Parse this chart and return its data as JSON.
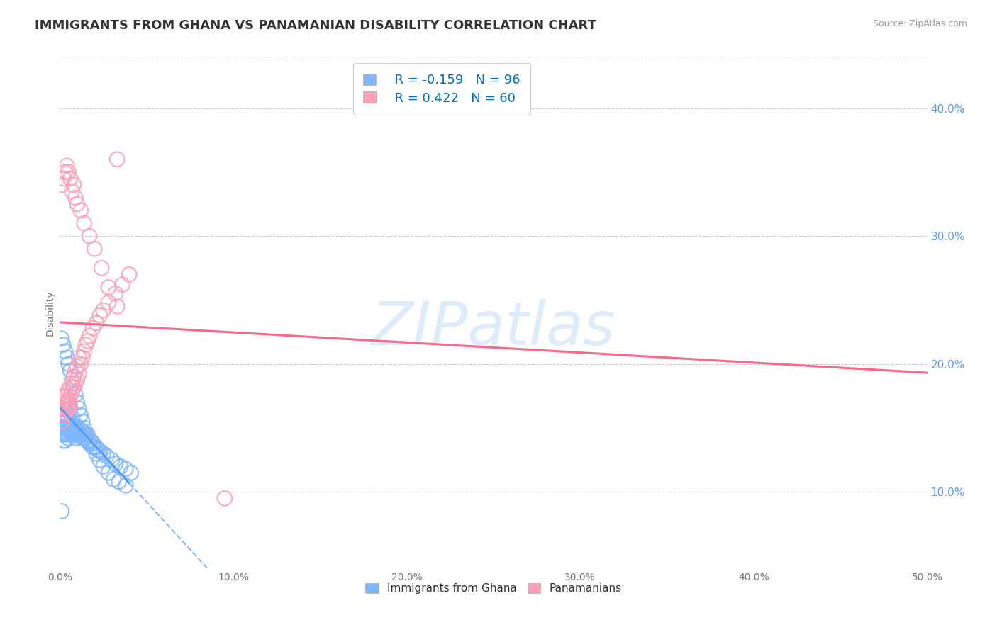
{
  "title": "IMMIGRANTS FROM GHANA VS PANAMANIAN DISABILITY CORRELATION CHART",
  "source": "Source: ZipAtlas.com",
  "xlabel": "",
  "ylabel": "Disability",
  "xlim": [
    0.0,
    0.5
  ],
  "ylim": [
    0.04,
    0.44
  ],
  "xticks": [
    0.0,
    0.1,
    0.2,
    0.3,
    0.4,
    0.5
  ],
  "yticks": [
    0.1,
    0.2,
    0.3,
    0.4
  ],
  "xtick_labels": [
    "0.0%",
    "10.0%",
    "20.0%",
    "30.0%",
    "40.0%",
    "50.0%"
  ],
  "ytick_labels": [
    "10.0%",
    "20.0%",
    "30.0%",
    "40.0%"
  ],
  "series1_name": "Immigrants from Ghana",
  "series1_color": "#7EB6FF",
  "series1_line_color": "#5599EE",
  "series1_R": -0.159,
  "series1_N": 96,
  "series2_name": "Panamanians",
  "series2_color": "#FF9EB5",
  "series2_line_color": "#FF6688",
  "series2_R": 0.422,
  "series2_N": 60,
  "legend_R_color": "#0070C0",
  "background_color": "#FFFFFF",
  "grid_color": "#CCCCCC",
  "title_fontsize": 13,
  "axis_fontsize": 10,
  "legend_fontsize": 13,
  "blue_x": [
    0.001,
    0.001,
    0.001,
    0.002,
    0.002,
    0.002,
    0.002,
    0.002,
    0.003,
    0.003,
    0.003,
    0.003,
    0.003,
    0.004,
    0.004,
    0.004,
    0.004,
    0.005,
    0.005,
    0.005,
    0.005,
    0.005,
    0.006,
    0.006,
    0.006,
    0.006,
    0.007,
    0.007,
    0.007,
    0.007,
    0.008,
    0.008,
    0.008,
    0.009,
    0.009,
    0.009,
    0.01,
    0.01,
    0.01,
    0.011,
    0.011,
    0.012,
    0.012,
    0.013,
    0.013,
    0.014,
    0.014,
    0.015,
    0.015,
    0.016,
    0.016,
    0.017,
    0.018,
    0.019,
    0.02,
    0.021,
    0.022,
    0.023,
    0.025,
    0.027,
    0.03,
    0.032,
    0.035,
    0.038,
    0.041,
    0.001,
    0.002,
    0.003,
    0.004,
    0.005,
    0.006,
    0.007,
    0.008,
    0.009,
    0.01,
    0.011,
    0.012,
    0.013,
    0.014,
    0.015,
    0.016,
    0.017,
    0.019,
    0.021,
    0.023,
    0.025,
    0.028,
    0.031,
    0.034,
    0.038,
    0.001,
    0.002,
    0.003,
    0.004,
    0.005,
    0.006
  ],
  "blue_y": [
    0.15,
    0.16,
    0.145,
    0.155,
    0.16,
    0.145,
    0.14,
    0.165,
    0.15,
    0.155,
    0.145,
    0.16,
    0.14,
    0.15,
    0.145,
    0.155,
    0.16,
    0.148,
    0.152,
    0.145,
    0.158,
    0.142,
    0.148,
    0.152,
    0.145,
    0.155,
    0.148,
    0.152,
    0.145,
    0.158,
    0.148,
    0.145,
    0.152,
    0.145,
    0.148,
    0.152,
    0.145,
    0.148,
    0.142,
    0.148,
    0.145,
    0.145,
    0.148,
    0.142,
    0.148,
    0.145,
    0.142,
    0.145,
    0.142,
    0.14,
    0.145,
    0.138,
    0.14,
    0.138,
    0.135,
    0.135,
    0.133,
    0.132,
    0.13,
    0.128,
    0.125,
    0.122,
    0.12,
    0.118,
    0.115,
    0.22,
    0.215,
    0.21,
    0.205,
    0.2,
    0.195,
    0.188,
    0.182,
    0.176,
    0.17,
    0.165,
    0.16,
    0.155,
    0.15,
    0.145,
    0.14,
    0.138,
    0.135,
    0.13,
    0.125,
    0.12,
    0.115,
    0.11,
    0.108,
    0.105,
    0.085,
    0.175,
    0.165,
    0.17,
    0.168,
    0.165
  ],
  "pink_x": [
    0.001,
    0.001,
    0.002,
    0.002,
    0.002,
    0.003,
    0.003,
    0.003,
    0.004,
    0.004,
    0.004,
    0.005,
    0.005,
    0.005,
    0.006,
    0.006,
    0.006,
    0.007,
    0.007,
    0.008,
    0.008,
    0.009,
    0.009,
    0.01,
    0.01,
    0.011,
    0.011,
    0.012,
    0.013,
    0.014,
    0.015,
    0.016,
    0.017,
    0.019,
    0.021,
    0.023,
    0.025,
    0.028,
    0.032,
    0.036,
    0.04,
    0.001,
    0.002,
    0.003,
    0.004,
    0.005,
    0.006,
    0.007,
    0.008,
    0.009,
    0.01,
    0.012,
    0.014,
    0.017,
    0.02,
    0.024,
    0.028,
    0.033,
    0.033,
    0.095
  ],
  "pink_y": [
    0.155,
    0.17,
    0.16,
    0.175,
    0.165,
    0.168,
    0.175,
    0.162,
    0.17,
    0.175,
    0.165,
    0.172,
    0.18,
    0.165,
    0.175,
    0.182,
    0.168,
    0.178,
    0.185,
    0.182,
    0.19,
    0.185,
    0.195,
    0.188,
    0.198,
    0.192,
    0.205,
    0.2,
    0.205,
    0.21,
    0.215,
    0.218,
    0.222,
    0.228,
    0.232,
    0.238,
    0.242,
    0.248,
    0.255,
    0.262,
    0.27,
    0.34,
    0.345,
    0.35,
    0.355,
    0.35,
    0.345,
    0.335,
    0.34,
    0.33,
    0.325,
    0.32,
    0.31,
    0.3,
    0.29,
    0.275,
    0.26,
    0.245,
    0.36,
    0.095
  ]
}
